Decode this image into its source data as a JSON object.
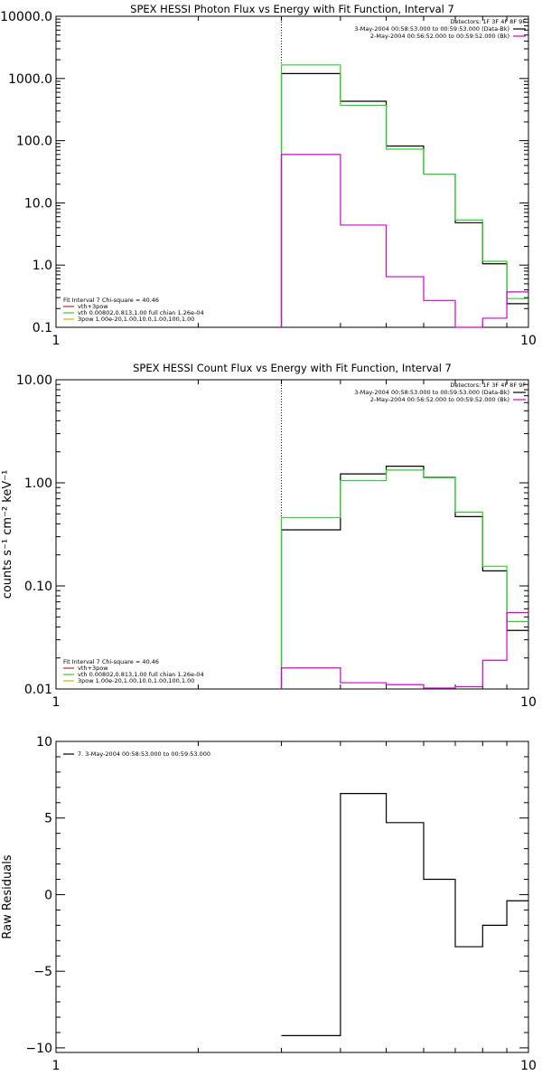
{
  "colors": {
    "black": "#000000",
    "green": "#2ad12a",
    "magenta": "#d200d2",
    "gold": "#d4b000",
    "red": "#d22222"
  },
  "chart_data": [
    {
      "type": "line",
      "title": "SPEX HESSI Photon Flux vs Energy with Fit Function, Interval 7",
      "xscale": "log",
      "yscale": "log",
      "xlim": [
        1,
        10
      ],
      "ylim": [
        0.1,
        10000
      ],
      "xticks": [
        "1",
        "10"
      ],
      "yticks": [
        {
          "v": 0.1,
          "label": "0.1"
        },
        {
          "v": 1,
          "label": "1.0"
        },
        {
          "v": 10,
          "label": "10.0"
        },
        {
          "v": 100,
          "label": "100.0"
        },
        {
          "v": 1000,
          "label": "1000.0"
        },
        {
          "v": 10000,
          "label": "10000.0"
        }
      ],
      "vline_x": 3,
      "edges": [
        3,
        4,
        5,
        6,
        7,
        8,
        9,
        10
      ],
      "series": [
        {
          "color": "black",
          "values": [
            1200,
            430,
            82,
            29,
            4.8,
            1.05,
            0.24
          ]
        },
        {
          "color": "green",
          "values": [
            1650,
            370,
            73,
            29,
            5.3,
            1.15,
            0.29
          ]
        },
        {
          "color": "magenta",
          "values": [
            60,
            4.4,
            0.65,
            0.27,
            0.1,
            0.14,
            0.37
          ]
        }
      ],
      "legend_top": {
        "header": "Detectors: 1F 3F 4F 8F 9F",
        "entries": [
          {
            "text": "3-May-2004 00:58:53.000 to 00:59:53.000 (Data-Bk)",
            "color": "black"
          },
          {
            "text": "2-May-2004 00:56:52.000 to 00:59:52.000 (Bk)",
            "color": "magenta"
          }
        ]
      },
      "legend_bottom": {
        "header": "Fit Interval 7   Chi-square = 40.46",
        "entries": [
          {
            "text": "vth+3pow",
            "color": "red"
          },
          {
            "text": "vth 0.00802,0.813,1.00   full chian 1.26e-04",
            "color": "green"
          },
          {
            "text": "3pow 1.00e-20,1.00,10.0,1.00,100,1.00",
            "color": "gold"
          }
        ]
      }
    },
    {
      "type": "line",
      "title": "SPEX HESSI Count Flux vs Energy with Fit Function, Interval 7",
      "ylabel": "counts s⁻¹ cm⁻² keV⁻¹",
      "xscale": "log",
      "yscale": "log",
      "xlim": [
        1,
        10
      ],
      "ylim": [
        0.01,
        10
      ],
      "xticks": [
        "1",
        "10"
      ],
      "yticks": [
        {
          "v": 0.01,
          "label": "0.01"
        },
        {
          "v": 0.1,
          "label": "0.10"
        },
        {
          "v": 1,
          "label": "1.00"
        },
        {
          "v": 10,
          "label": "10.00"
        }
      ],
      "vline_x": 3,
      "edges": [
        3,
        4,
        5,
        6,
        7,
        8,
        9,
        10
      ],
      "series": [
        {
          "color": "black",
          "values": [
            0.35,
            1.22,
            1.45,
            1.13,
            0.47,
            0.14,
            0.037
          ]
        },
        {
          "color": "green",
          "values": [
            0.46,
            1.05,
            1.33,
            1.12,
            0.52,
            0.155,
            0.045
          ]
        },
        {
          "color": "magenta",
          "values": [
            0.016,
            0.0115,
            0.011,
            0.0102,
            0.0105,
            0.019,
            0.055
          ]
        }
      ],
      "legend_top": {
        "header": "Detectors: 1F 3F 4F 8F 9F",
        "entries": [
          {
            "text": "3-May-2004 00:58:53.000 to 00:59:53.000 (Data-Bk)",
            "color": "black"
          },
          {
            "text": "2-May-2004 00:56:52.000 to 00:59:52.000 (Bk)",
            "color": "magenta"
          }
        ]
      },
      "legend_bottom": {
        "header": "Fit Interval 7   Chi-square = 40.46",
        "entries": [
          {
            "text": "vth+3pow",
            "color": "red"
          },
          {
            "text": "vth 0.00802,0.813,1.00   full chian 1.26e-04",
            "color": "green"
          },
          {
            "text": "3pow 1.00e-20,1.00,10.0,1.00,100,1.00",
            "color": "gold"
          }
        ]
      }
    },
    {
      "type": "line",
      "title": "",
      "ylabel": "Raw Residuals",
      "xscale": "log",
      "yscale": "linear",
      "xlim": [
        1,
        10
      ],
      "ylim": [
        -10.3,
        10
      ],
      "xticks": [
        "1",
        "10"
      ],
      "yticks": [
        {
          "v": 10,
          "label": "10"
        },
        {
          "v": 5,
          "label": "5"
        },
        {
          "v": 0,
          "label": "0"
        },
        {
          "v": -5,
          "label": "−5"
        },
        {
          "v": -10,
          "label": "−10"
        }
      ],
      "edges": [
        3,
        4,
        5,
        6,
        7,
        8,
        9,
        10
      ],
      "series": [
        {
          "color": "black",
          "values": [
            -9.2,
            6.6,
            4.7,
            1.0,
            -3.4,
            -2.0,
            -0.4
          ]
        }
      ],
      "legend_top": {
        "header": "",
        "entries": [
          {
            "text": "7. 3-May-2004 00:58:53.000 to 00:59:53.000",
            "color": "black"
          }
        ]
      }
    }
  ]
}
